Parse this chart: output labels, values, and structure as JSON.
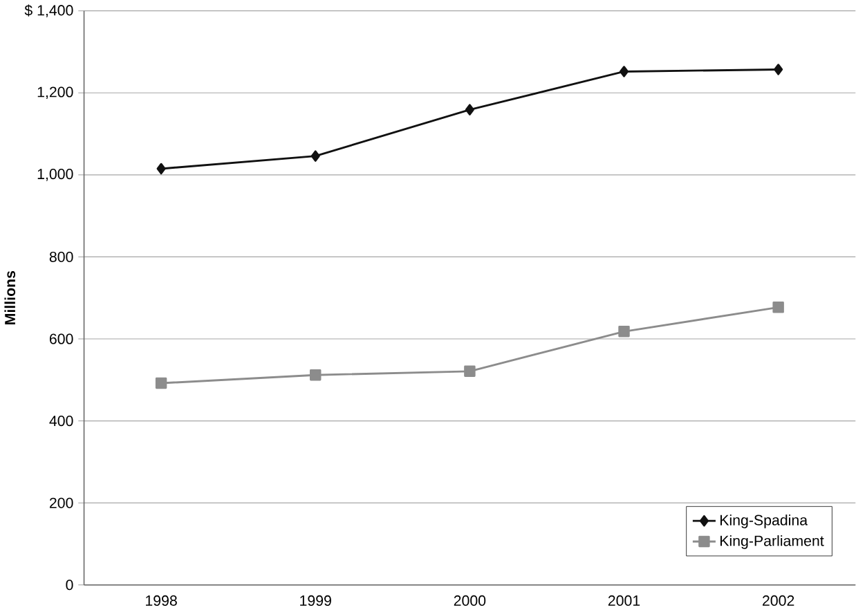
{
  "chart_data": {
    "type": "line",
    "ylabel": "Millions",
    "categories": [
      "1998",
      "1999",
      "2000",
      "2001",
      "2002"
    ],
    "series": [
      {
        "name": "King-Spadina",
        "color": "#111111",
        "marker": "diamond",
        "values": [
          1015,
          1046,
          1159,
          1252,
          1257
        ]
      },
      {
        "name": "King-Parliament",
        "color": "#8c8c8c",
        "marker": "square",
        "values": [
          492,
          512,
          521,
          618,
          677
        ]
      }
    ],
    "ylim": [
      0,
      1400
    ],
    "yticks": [
      0,
      {
        "value": 200,
        "label": "200"
      },
      {
        "value": 400,
        "label": "400"
      },
      {
        "value": 600,
        "label": "600"
      },
      {
        "value": 800,
        "label": "800"
      },
      {
        "value": 1000,
        "label": "1,000"
      },
      {
        "value": 1200,
        "label": "1,200"
      },
      {
        "value": 1400,
        "label": "$ 1,400"
      }
    ],
    "grid": "y",
    "legend": "bottom right",
    "line_style": "solid"
  }
}
